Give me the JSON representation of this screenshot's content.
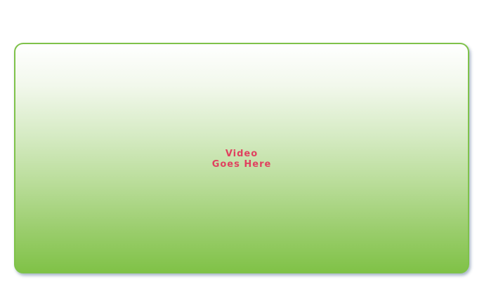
{
  "placeholder": {
    "line1": "Video",
    "line2": "Goes Here"
  },
  "colors": {
    "border": "#7fc24a",
    "gradient_top": "#ffffff",
    "gradient_bottom": "#80c247",
    "text": "#e0415f",
    "background": "#ffffff"
  }
}
